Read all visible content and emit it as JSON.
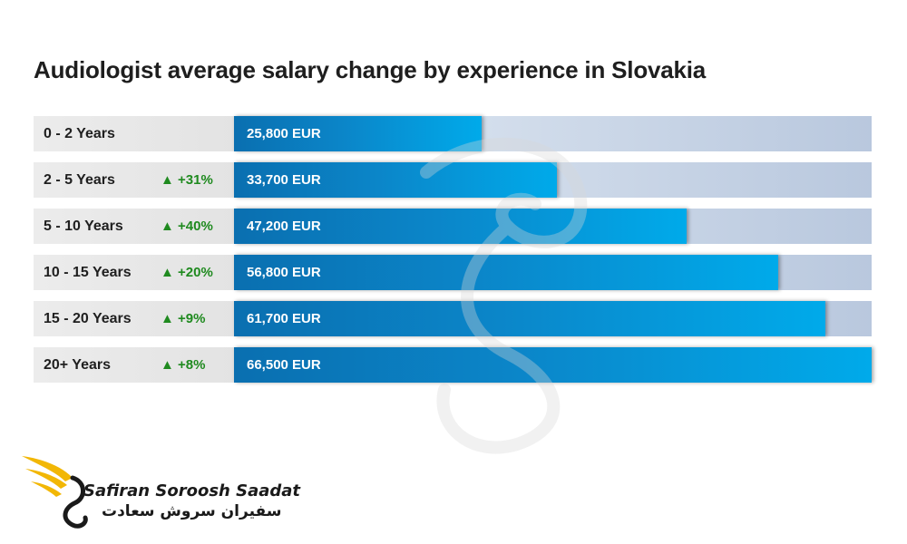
{
  "chart_data": {
    "type": "bar",
    "orientation": "horizontal",
    "title": "Audiologist average salary change by experience in Slovakia",
    "unit": "EUR",
    "categories": [
      "0 - 2 Years",
      "2 - 5 Years",
      "5 - 10 Years",
      "10 - 15 Years",
      "15 - 20 Years",
      "20+ Years"
    ],
    "changes": [
      "",
      "+31%",
      "+40%",
      "+20%",
      "+9%",
      "+8%"
    ],
    "values": [
      25800,
      33700,
      47200,
      56800,
      61700,
      66500
    ],
    "value_labels": [
      "25,800 EUR",
      "33,700 EUR",
      "47,200 EUR",
      "56,800 EUR",
      "61,700 EUR",
      "66,500 EUR"
    ],
    "xlim": [
      0,
      66500
    ],
    "colors": {
      "bar": "#0b86c9",
      "track": "#c9d6e8",
      "change": "#1f8a1f"
    }
  },
  "logo": {
    "name_en": "Safiran Soroosh Saadat",
    "name_fa": "سفیران سروش سعادت"
  }
}
